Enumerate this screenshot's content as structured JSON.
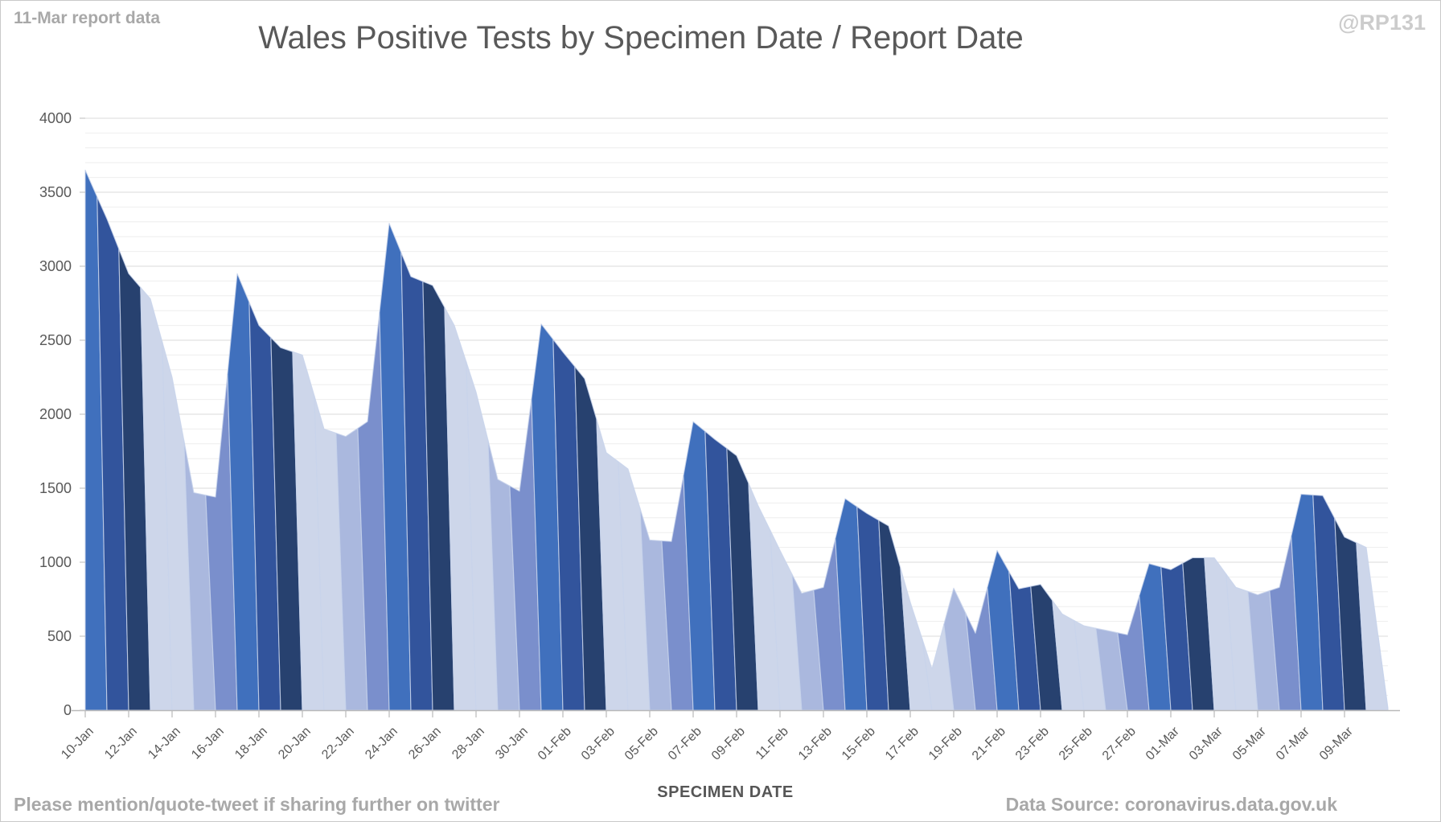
{
  "annotations": {
    "report_note": "11-Mar report data",
    "watermark": "@RP131",
    "share_note": "Please mention/quote-tweet if sharing further on twitter",
    "data_source": "Data Source: coronavirus.data.gov.uk"
  },
  "chart_data": {
    "type": "area",
    "title": "Wales Positive Tests by Specimen Date / Report Date",
    "xlabel": "SPECIMEN DATE",
    "ylabel": "",
    "ylim": [
      0,
      4000
    ],
    "y_ticks": [
      0,
      500,
      1000,
      1500,
      2000,
      2500,
      3000,
      3500,
      4000
    ],
    "x_tick_step_days": 2,
    "grid": {
      "minor_step": 100,
      "major_step": 500,
      "minor_color": "#eeeeee",
      "major_color": "#dbdbdb"
    },
    "axis_color": "#b9b9b9",
    "tick_label_color": "#595959",
    "legend": "none",
    "description": "Layered area chart: one series per daily report date (oldest reports drawn in front), so successive report revisions appear as diagonal colour bands; silhouette = positive tests by specimen date as of the 11-Mar report.",
    "dates": [
      "10-Jan",
      "11-Jan",
      "12-Jan",
      "13-Jan",
      "14-Jan",
      "15-Jan",
      "16-Jan",
      "17-Jan",
      "18-Jan",
      "19-Jan",
      "20-Jan",
      "21-Jan",
      "22-Jan",
      "23-Jan",
      "24-Jan",
      "25-Jan",
      "26-Jan",
      "27-Jan",
      "28-Jan",
      "29-Jan",
      "30-Jan",
      "31-Jan",
      "01-Feb",
      "02-Feb",
      "03-Feb",
      "04-Feb",
      "05-Feb",
      "06-Feb",
      "07-Feb",
      "08-Feb",
      "09-Feb",
      "10-Feb",
      "11-Feb",
      "12-Feb",
      "13-Feb",
      "14-Feb",
      "15-Feb",
      "16-Feb",
      "17-Feb",
      "18-Feb",
      "19-Feb",
      "20-Feb",
      "21-Feb",
      "22-Feb",
      "23-Feb",
      "24-Feb",
      "25-Feb",
      "26-Feb",
      "27-Feb",
      "28-Feb",
      "01-Mar",
      "02-Mar",
      "03-Mar",
      "04-Mar",
      "05-Mar",
      "06-Mar",
      "07-Mar",
      "08-Mar",
      "09-Mar",
      "10-Mar",
      "11-Mar"
    ],
    "envelope": [
      3650,
      3320,
      2950,
      2780,
      2250,
      1470,
      1440,
      2950,
      2600,
      2450,
      2400,
      1900,
      1850,
      1950,
      3290,
      2930,
      2870,
      2600,
      2150,
      1560,
      1480,
      2610,
      2420,
      2240,
      1740,
      1630,
      1150,
      1140,
      1950,
      1830,
      1720,
      1380,
      1080,
      790,
      830,
      1430,
      1330,
      1245,
      730,
      280,
      825,
      520,
      1080,
      820,
      850,
      650,
      570,
      540,
      510,
      990,
      950,
      1030,
      1030,
      830,
      780,
      830,
      1460,
      1450,
      1170,
      1100,
      15
    ],
    "palette": [
      "#CDD6EA",
      "#AAB8DE",
      "#7A8FCC",
      "#4070BD",
      "#32549C",
      "#27416F"
    ],
    "week_color_pattern": [
      3,
      4,
      5,
      0,
      0,
      1,
      2
    ],
    "stripe_lean_days": 0.45,
    "stripe_edge_color": "rgba(200,211,235,0.85)"
  }
}
